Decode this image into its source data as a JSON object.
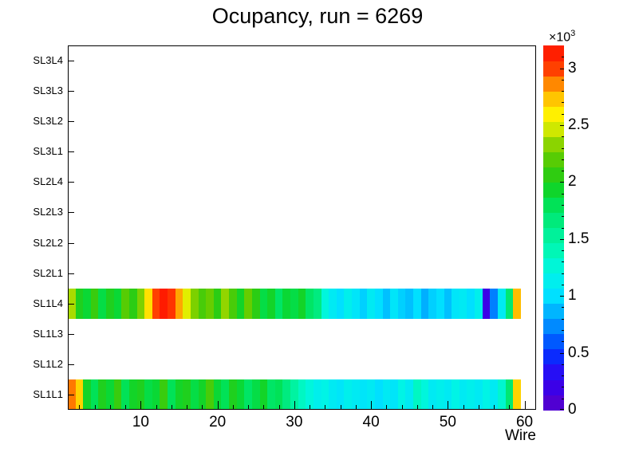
{
  "title": "Ocupancy, run = 6269",
  "x_axis": {
    "title": "Wire",
    "range": [
      0.5,
      61.5
    ],
    "major_ticks": [
      10,
      20,
      30,
      40,
      50,
      60
    ],
    "minor_tick_step": 2
  },
  "y_axis": {
    "labels_top_to_bottom": [
      "SL3L4",
      "SL3L3",
      "SL3L2",
      "SL3L1",
      "SL2L4",
      "SL2L3",
      "SL2L2",
      "SL2L1",
      "SL1L4",
      "SL1L3",
      "SL1L2",
      "SL1L1"
    ]
  },
  "z_axis": {
    "tick_labels": [
      "0",
      "0.5",
      "1",
      "1.5",
      "2",
      "2.5",
      "3"
    ],
    "tick_values": [
      0,
      500,
      1000,
      1500,
      2000,
      2500,
      3000
    ],
    "max": 3200,
    "scale_prefix": "×10",
    "scale_exponent": "3"
  },
  "palette_stops": [
    [
      0.0,
      "#5a00c8"
    ],
    [
      0.06,
      "#3c00e6"
    ],
    [
      0.12,
      "#1e14fa"
    ],
    [
      0.16,
      "#0038ff"
    ],
    [
      0.22,
      "#0080ff"
    ],
    [
      0.27,
      "#00b4ff"
    ],
    [
      0.3125,
      "#00e0ff"
    ],
    [
      0.38,
      "#00f6e4"
    ],
    [
      0.44,
      "#00f7b4"
    ],
    [
      0.5,
      "#00ee8c"
    ],
    [
      0.56,
      "#00e35a"
    ],
    [
      0.6,
      "#0cd62e"
    ],
    [
      0.645,
      "#2ecc11"
    ],
    [
      0.7,
      "#63cc00"
    ],
    [
      0.745,
      "#a0d800"
    ],
    [
      0.78,
      "#e0ee00"
    ],
    [
      0.81,
      "#fff200"
    ],
    [
      0.845,
      "#ffd200"
    ],
    [
      0.875,
      "#ffa600"
    ],
    [
      0.91,
      "#ff7300"
    ],
    [
      0.9375,
      "#ff4000"
    ],
    [
      1.0,
      "#ff0f00"
    ]
  ],
  "chart_data": {
    "type": "heatmap",
    "title": "Ocupancy, run = 6269",
    "xlabel": "Wire",
    "ylabel": "",
    "x_bins": {
      "start": 1,
      "end": 60
    },
    "rows_top_to_bottom": [
      "SL3L4",
      "SL3L3",
      "SL3L2",
      "SL3L1",
      "SL2L4",
      "SL2L3",
      "SL2L2",
      "SL2L1",
      "SL1L4",
      "SL1L3",
      "SL1L2",
      "SL1L1"
    ],
    "empty_rows": [
      "SL3L4",
      "SL3L3",
      "SL3L2",
      "SL3L1",
      "SL2L4",
      "SL2L3",
      "SL2L2",
      "SL2L1",
      "SL1L3",
      "SL1L2"
    ],
    "zmax": 3200,
    "series": [
      {
        "row": "SL1L4",
        "values": [
          2400,
          2000,
          1900,
          2100,
          1850,
          2000,
          1900,
          2200,
          2050,
          2300,
          2650,
          3000,
          3150,
          3050,
          2800,
          2500,
          2300,
          2150,
          2250,
          2050,
          2350,
          2150,
          1950,
          2250,
          2050,
          1850,
          1950,
          1750,
          1900,
          1850,
          1950,
          1750,
          1650,
          1250,
          1100,
          1000,
          1150,
          1050,
          950,
          1100,
          1000,
          900,
          1050,
          950,
          900,
          1000,
          850,
          950,
          1000,
          900,
          1050,
          1100,
          1000,
          1150,
          200,
          700,
          1100,
          1700,
          2750,
          null
        ]
      },
      {
        "row": "SL1L1",
        "values": [
          2900,
          2700,
          1950,
          1800,
          2000,
          1900,
          2100,
          1800,
          1950,
          2000,
          1850,
          1900,
          2100,
          1800,
          1950,
          2000,
          1850,
          1950,
          2150,
          1900,
          1800,
          2000,
          1900,
          1750,
          1850,
          1950,
          1750,
          1800,
          1650,
          1500,
          1350,
          1250,
          1150,
          1200,
          1100,
          1050,
          1150,
          1100,
          1050,
          1100,
          1000,
          1100,
          1050,
          1200,
          1100,
          1350,
          1250,
          1100,
          1150,
          1100,
          1200,
          1100,
          1150,
          1100,
          1200,
          1100,
          1300,
          1700,
          2700,
          null
        ]
      }
    ]
  }
}
